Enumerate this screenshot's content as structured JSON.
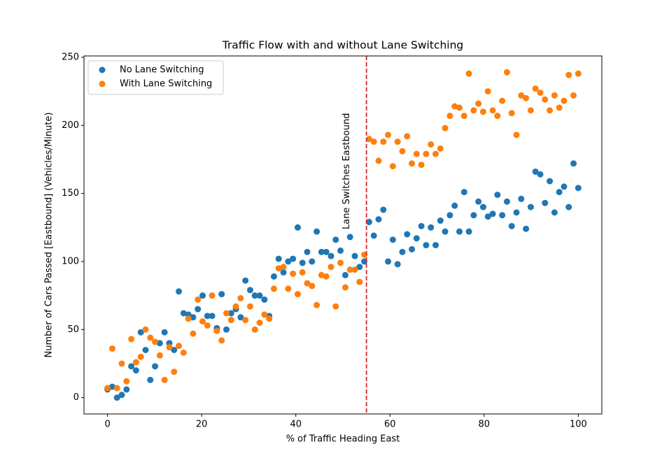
{
  "chart_data": {
    "type": "scatter",
    "title": "Traffic Flow with and without Lane Switching",
    "x_label": "% of Traffic Heading East",
    "y_label": "Number of Cars Passed [Eastbound] (Vehicles/Minute)",
    "x": [
      0,
      1.01,
      2.02,
      3.03,
      4.04,
      5.05,
      6.06,
      7.07,
      8.08,
      9.09,
      10.1,
      11.11,
      12.12,
      13.13,
      14.14,
      15.15,
      16.16,
      17.17,
      18.18,
      19.19,
      20.2,
      21.21,
      22.22,
      23.23,
      24.24,
      25.25,
      26.26,
      27.27,
      28.28,
      29.29,
      30.3,
      31.31,
      32.32,
      33.33,
      34.34,
      35.35,
      36.36,
      37.37,
      38.38,
      39.39,
      40.4,
      41.41,
      42.42,
      43.43,
      44.44,
      45.45,
      46.46,
      47.47,
      48.48,
      49.49,
      50.51,
      51.52,
      52.53,
      53.54,
      54.55,
      55.56,
      56.57,
      57.58,
      58.59,
      59.6,
      60.61,
      61.62,
      62.63,
      63.64,
      64.65,
      65.66,
      66.67,
      67.68,
      68.69,
      69.7,
      70.71,
      71.72,
      72.73,
      73.74,
      74.75,
      75.76,
      76.77,
      77.78,
      78.79,
      79.8,
      80.81,
      81.82,
      82.83,
      83.84,
      84.85,
      85.86,
      86.87,
      87.88,
      88.89,
      89.9,
      90.91,
      91.92,
      92.93,
      93.94,
      94.95,
      95.96,
      96.97,
      97.98,
      98.99,
      100
    ],
    "series": [
      {
        "name": "No Lane Switching",
        "color": "#1f77b4",
        "values": [
          6,
          8,
          0,
          2,
          6,
          23,
          20,
          48,
          35,
          13,
          23,
          40,
          48,
          40,
          35,
          78,
          62,
          61,
          59,
          65,
          75,
          60,
          60,
          51,
          76,
          50,
          62,
          65,
          59,
          86,
          79,
          75,
          75,
          72,
          60,
          89,
          102,
          92,
          100,
          102,
          125,
          99,
          107,
          100,
          122,
          107,
          107,
          104,
          116,
          108,
          90,
          118,
          104,
          96,
          100,
          129,
          119,
          131,
          138,
          100,
          116,
          98,
          107,
          120,
          109,
          117,
          126,
          112,
          125,
          112,
          130,
          122,
          134,
          141,
          122,
          151,
          122,
          134,
          144,
          140,
          133,
          135,
          149,
          134,
          144,
          126,
          136,
          146,
          124,
          140,
          166,
          164,
          143,
          159,
          136,
          151,
          155,
          140,
          172,
          154
        ]
      },
      {
        "name": "With Lane Switching",
        "color": "#ff7f0e",
        "values": [
          7,
          36,
          7,
          25,
          12,
          43,
          26,
          30,
          50,
          44,
          41,
          31,
          13,
          37,
          19,
          38,
          33,
          58,
          47,
          72,
          56,
          53,
          75,
          49,
          42,
          62,
          57,
          67,
          73,
          57,
          67,
          50,
          55,
          61,
          58,
          80,
          95,
          96,
          80,
          91,
          76,
          92,
          84,
          82,
          68,
          90,
          89,
          96,
          67,
          99,
          81,
          94,
          94,
          85,
          105,
          190,
          188,
          174,
          188,
          193,
          170,
          188,
          181,
          192,
          172,
          179,
          171,
          179,
          186,
          179,
          183,
          198,
          207,
          214,
          213,
          207,
          238,
          211,
          216,
          210,
          225,
          211,
          207,
          218,
          239,
          209,
          193,
          222,
          220,
          211,
          227,
          224,
          219,
          211,
          222,
          213,
          218,
          237,
          222,
          238
        ]
      }
    ],
    "vline": {
      "x": 55,
      "color": "#d62728",
      "label": "Lane Switches Eastbound"
    },
    "xlim": [
      -5,
      105
    ],
    "xticks": [
      0,
      20,
      40,
      60,
      80,
      100
    ],
    "ylim": [
      -12,
      251
    ],
    "yticks": [
      0,
      50,
      100,
      150,
      200,
      250
    ],
    "legend": "upper left",
    "grid": false
  }
}
